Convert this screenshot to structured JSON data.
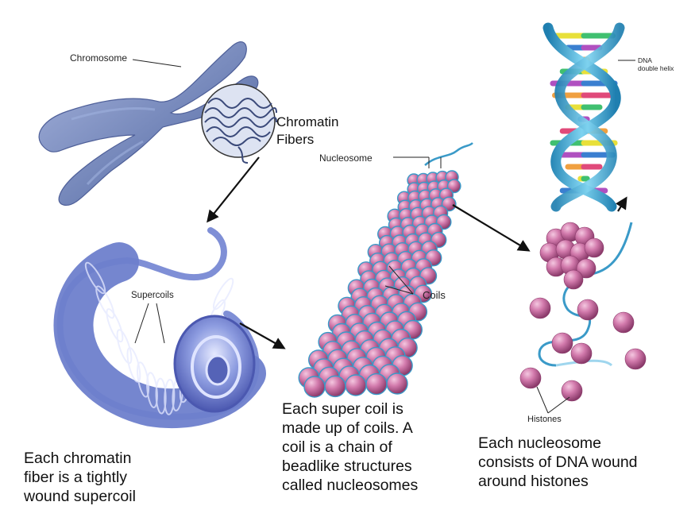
{
  "labels": {
    "chromosome": "Chromosome",
    "chromatin_fibers": [
      "Chromatin",
      "Fibers"
    ],
    "nucleosome": "Nucleosome",
    "dna_double_helix": [
      "DNA",
      "double helix"
    ],
    "supercoils": "Supercoils",
    "coils": "Coils",
    "histones": "Histones"
  },
  "captions": {
    "left": [
      "Each chromatin",
      "fiber is a tightly",
      "wound supercoil"
    ],
    "middle": [
      "Each super coil is",
      "made up of coils. A",
      "coil is a chain of",
      "beadlike structures",
      "called nucleosomes"
    ],
    "right": [
      "Each nucleosome",
      "consists of DNA wound",
      "around histones"
    ]
  },
  "colors": {
    "chromosome": "#6f82b6",
    "supercoil": "#7f8fd6",
    "bead": "#cc6fa6",
    "dna_strand": "#3a9ac8",
    "arrow": "#111111"
  }
}
